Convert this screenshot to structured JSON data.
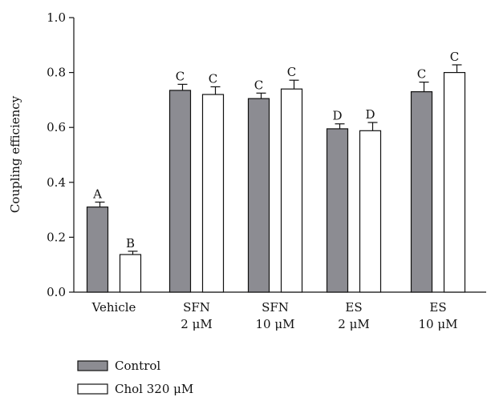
{
  "chart_data": {
    "type": "bar",
    "ylabel": "Coupling efficiency",
    "ylim": [
      0.0,
      1.0
    ],
    "yticks": [
      "0.0",
      "0.2",
      "0.4",
      "0.6",
      "0.8",
      "1.0"
    ],
    "categories": [
      {
        "line1": "Vehicle",
        "line2": ""
      },
      {
        "line1": "SFN",
        "line2": "2 μM"
      },
      {
        "line1": "SFN",
        "line2": "10 μM"
      },
      {
        "line1": "ES",
        "line2": "2 μM"
      },
      {
        "line1": "ES",
        "line2": "10 μM"
      }
    ],
    "series": [
      {
        "name": "Control",
        "color": "#8c8c92",
        "values": [
          0.31,
          0.735,
          0.705,
          0.595,
          0.73
        ],
        "errors": [
          0.018,
          0.022,
          0.02,
          0.018,
          0.035
        ],
        "letters": [
          "A",
          "C",
          "C",
          "D",
          "C"
        ]
      },
      {
        "name": "Chol 320 μM",
        "color": "#ffffff",
        "values": [
          0.137,
          0.72,
          0.74,
          0.588,
          0.8
        ],
        "errors": [
          0.012,
          0.028,
          0.032,
          0.03,
          0.028
        ],
        "letters": [
          "B",
          "C",
          "C",
          "D",
          "C"
        ]
      }
    ],
    "grid": false,
    "legend_position": "bottom-left"
  }
}
